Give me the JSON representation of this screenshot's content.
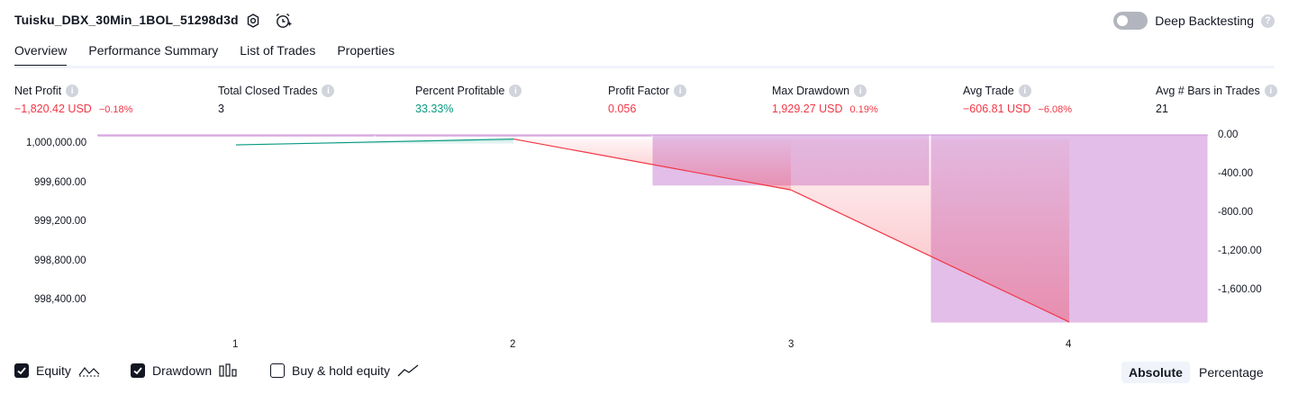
{
  "header": {
    "strategy_name": "Tuisku_DBX_30Min_1BOL_51298d3d",
    "settings_icon": "gear-icon",
    "alert_icon": "alarm-clock-icon",
    "deep_backtesting_label": "Deep Backtesting",
    "deep_backtesting_enabled": false
  },
  "tabs": [
    {
      "label": "Overview",
      "active": true
    },
    {
      "label": "Performance Summary",
      "active": false
    },
    {
      "label": "List of Trades",
      "active": false
    },
    {
      "label": "Properties",
      "active": false
    }
  ],
  "metrics": {
    "net_profit": {
      "label": "Net Profit",
      "value": "−1,820.42 USD",
      "pct": "−0.18%"
    },
    "total_closed_trades": {
      "label": "Total Closed Trades",
      "value": "3"
    },
    "percent_profitable": {
      "label": "Percent Profitable",
      "value": "33.33%"
    },
    "profit_factor": {
      "label": "Profit Factor",
      "value": "0.056"
    },
    "max_drawdown": {
      "label": "Max Drawdown",
      "value": "1,929.27 USD",
      "pct": "0.19%"
    },
    "avg_trade": {
      "label": "Avg Trade",
      "value": "−606.81 USD",
      "pct": "−6.08%"
    },
    "avg_bars": {
      "label": "Avg # Bars in Trades",
      "value": "21"
    }
  },
  "chart_data": {
    "type": "line",
    "x": [
      1,
      2,
      3,
      4
    ],
    "x_tick_labels": [
      "1",
      "2",
      "3",
      "4"
    ],
    "equity": [
      999990,
      1000050,
      999530,
      998180
    ],
    "drawdown": [
      0,
      0,
      -520,
      -1929.27
    ],
    "left_axis_labels": [
      "1,000,000.00",
      "999,600.00",
      "999,200.00",
      "998,800.00",
      "998,400.00"
    ],
    "left_axis_values": [
      1000000,
      999600,
      999200,
      998800,
      998400
    ],
    "right_axis_labels": [
      "0.00",
      "-400.00",
      "-800.00",
      "-1,200.00",
      "-1,600.00"
    ],
    "right_axis_values": [
      0,
      -400,
      -800,
      -1200,
      -1600
    ],
    "colors": {
      "equity_up": "#089981",
      "equity_down": "#f23645",
      "drawdown": "#ce93d8"
    }
  },
  "legend": {
    "equity": {
      "label": "Equity",
      "checked": true
    },
    "drawdown": {
      "label": "Drawdown",
      "checked": true
    },
    "buy_hold": {
      "label": "Buy & hold equity",
      "checked": false
    }
  },
  "modes": {
    "absolute": "Absolute",
    "percentage": "Percentage",
    "active": "absolute"
  }
}
